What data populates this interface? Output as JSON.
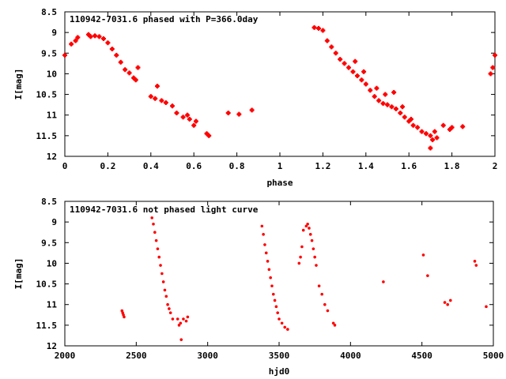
{
  "chart_data": [
    {
      "type": "scatter",
      "title": "110942-7031.6 phased with P=366.0day",
      "xlabel": "phase",
      "ylabel": "I[mag]",
      "xlim": [
        0,
        2
      ],
      "ylim": [
        8.5,
        12
      ],
      "y_inverted": true,
      "grid": false,
      "marker_color": "#ff0000",
      "marker": "plus",
      "xticks": [
        "0",
        "0.2",
        "0.4",
        "0.6",
        "0.8",
        "1",
        "1.2",
        "1.4",
        "1.6",
        "1.8",
        "2"
      ],
      "yticks": [
        "8.5",
        "9",
        "9.5",
        "10",
        "10.5",
        "11",
        "11.5",
        "12"
      ],
      "series": [
        {
          "points": [
            [
              0.0,
              9.55
            ],
            [
              0.03,
              9.28
            ],
            [
              0.05,
              9.2
            ],
            [
              0.06,
              9.12
            ],
            [
              0.11,
              9.05
            ],
            [
              0.12,
              9.1
            ],
            [
              0.14,
              9.08
            ],
            [
              0.16,
              9.1
            ],
            [
              0.18,
              9.15
            ],
            [
              0.2,
              9.25
            ],
            [
              0.22,
              9.4
            ],
            [
              0.24,
              9.55
            ],
            [
              0.26,
              9.72
            ],
            [
              0.28,
              9.9
            ],
            [
              0.3,
              9.98
            ],
            [
              0.32,
              10.1
            ],
            [
              0.33,
              10.15
            ],
            [
              0.34,
              9.85
            ],
            [
              0.4,
              10.55
            ],
            [
              0.42,
              10.6
            ],
            [
              0.43,
              10.3
            ],
            [
              0.45,
              10.65
            ],
            [
              0.47,
              10.7
            ],
            [
              0.5,
              10.78
            ],
            [
              0.52,
              10.95
            ],
            [
              0.55,
              11.05
            ],
            [
              0.57,
              11.0
            ],
            [
              0.58,
              11.1
            ],
            [
              0.6,
              11.25
            ],
            [
              0.61,
              11.15
            ],
            [
              0.66,
              11.45
            ],
            [
              0.67,
              11.5
            ],
            [
              0.76,
              10.95
            ],
            [
              0.81,
              10.98
            ],
            [
              0.87,
              10.88
            ],
            [
              1.16,
              8.88
            ],
            [
              1.18,
              8.9
            ],
            [
              1.2,
              8.95
            ],
            [
              1.22,
              9.2
            ],
            [
              1.24,
              9.35
            ],
            [
              1.26,
              9.5
            ],
            [
              1.28,
              9.65
            ],
            [
              1.3,
              9.75
            ],
            [
              1.32,
              9.85
            ],
            [
              1.34,
              9.95
            ],
            [
              1.36,
              10.05
            ],
            [
              1.38,
              10.15
            ],
            [
              1.4,
              10.25
            ],
            [
              1.42,
              10.4
            ],
            [
              1.44,
              10.55
            ],
            [
              1.46,
              10.65
            ],
            [
              1.48,
              10.72
            ],
            [
              1.5,
              10.75
            ],
            [
              1.52,
              10.8
            ],
            [
              1.54,
              10.85
            ],
            [
              1.56,
              10.95
            ],
            [
              1.58,
              11.05
            ],
            [
              1.6,
              11.15
            ],
            [
              1.62,
              11.25
            ],
            [
              1.64,
              11.3
            ],
            [
              1.66,
              11.4
            ],
            [
              1.68,
              11.45
            ],
            [
              1.7,
              11.5
            ],
            [
              1.71,
              11.6
            ],
            [
              1.72,
              11.4
            ],
            [
              1.73,
              11.55
            ],
            [
              1.76,
              11.25
            ],
            [
              1.79,
              11.35
            ],
            [
              1.8,
              11.3
            ],
            [
              1.85,
              11.28
            ],
            [
              1.35,
              9.7
            ],
            [
              1.39,
              9.95
            ],
            [
              1.45,
              10.35
            ],
            [
              1.49,
              10.5
            ],
            [
              1.53,
              10.45
            ],
            [
              1.57,
              10.8
            ],
            [
              1.61,
              11.1
            ],
            [
              1.7,
              11.8
            ],
            [
              1.98,
              10.0
            ],
            [
              1.99,
              9.85
            ],
            [
              2.0,
              9.55
            ]
          ]
        }
      ]
    },
    {
      "type": "scatter",
      "title": "110942-7031.6 not phased light curve",
      "xlabel": "hjd0",
      "ylabel": "I[mag]",
      "xlim": [
        2000,
        5000
      ],
      "ylim": [
        8.5,
        12
      ],
      "y_inverted": true,
      "grid": false,
      "marker_color": "#ff0000",
      "marker": "dot",
      "xticks": [
        "2000",
        "2500",
        "3000",
        "3500",
        "4000",
        "4500",
        "5000"
      ],
      "yticks": [
        "8.5",
        "9",
        "9.5",
        "10",
        "10.5",
        "11",
        "11.5",
        "12"
      ],
      "series": [
        {
          "points": [
            [
              2400,
              11.15
            ],
            [
              2405,
              11.2
            ],
            [
              2410,
              11.25
            ],
            [
              2415,
              11.3
            ],
            [
              2610,
              8.9
            ],
            [
              2620,
              9.05
            ],
            [
              2630,
              9.25
            ],
            [
              2640,
              9.45
            ],
            [
              2650,
              9.65
            ],
            [
              2660,
              9.85
            ],
            [
              2670,
              10.05
            ],
            [
              2680,
              10.25
            ],
            [
              2690,
              10.45
            ],
            [
              2700,
              10.65
            ],
            [
              2710,
              10.8
            ],
            [
              2720,
              11.0
            ],
            [
              2730,
              11.1
            ],
            [
              2740,
              11.2
            ],
            [
              2755,
              11.35
            ],
            [
              2790,
              11.35
            ],
            [
              2800,
              11.5
            ],
            [
              2810,
              11.45
            ],
            [
              2815,
              11.85
            ],
            [
              2830,
              11.35
            ],
            [
              2850,
              11.4
            ],
            [
              2860,
              11.3
            ],
            [
              3380,
              9.1
            ],
            [
              3390,
              9.3
            ],
            [
              3400,
              9.55
            ],
            [
              3410,
              9.75
            ],
            [
              3420,
              9.95
            ],
            [
              3430,
              10.15
            ],
            [
              3440,
              10.35
            ],
            [
              3450,
              10.55
            ],
            [
              3460,
              10.75
            ],
            [
              3470,
              10.9
            ],
            [
              3480,
              11.05
            ],
            [
              3490,
              11.2
            ],
            [
              3500,
              11.35
            ],
            [
              3520,
              11.45
            ],
            [
              3540,
              11.55
            ],
            [
              3560,
              11.6
            ],
            [
              3640,
              10.0
            ],
            [
              3650,
              9.85
            ],
            [
              3660,
              9.6
            ],
            [
              3670,
              9.2
            ],
            [
              3690,
              9.1
            ],
            [
              3700,
              9.05
            ],
            [
              3710,
              9.15
            ],
            [
              3720,
              9.3
            ],
            [
              3730,
              9.45
            ],
            [
              3740,
              9.65
            ],
            [
              3750,
              9.85
            ],
            [
              3760,
              10.05
            ],
            [
              3780,
              10.55
            ],
            [
              3800,
              10.75
            ],
            [
              3820,
              11.0
            ],
            [
              3840,
              11.15
            ],
            [
              3880,
              11.45
            ],
            [
              3890,
              11.5
            ],
            [
              4230,
              10.45
            ],
            [
              4510,
              9.8
            ],
            [
              4540,
              10.3
            ],
            [
              4660,
              10.95
            ],
            [
              4680,
              11.0
            ],
            [
              4700,
              10.9
            ],
            [
              4870,
              9.95
            ],
            [
              4880,
              10.05
            ],
            [
              4950,
              11.05
            ]
          ]
        }
      ]
    }
  ]
}
